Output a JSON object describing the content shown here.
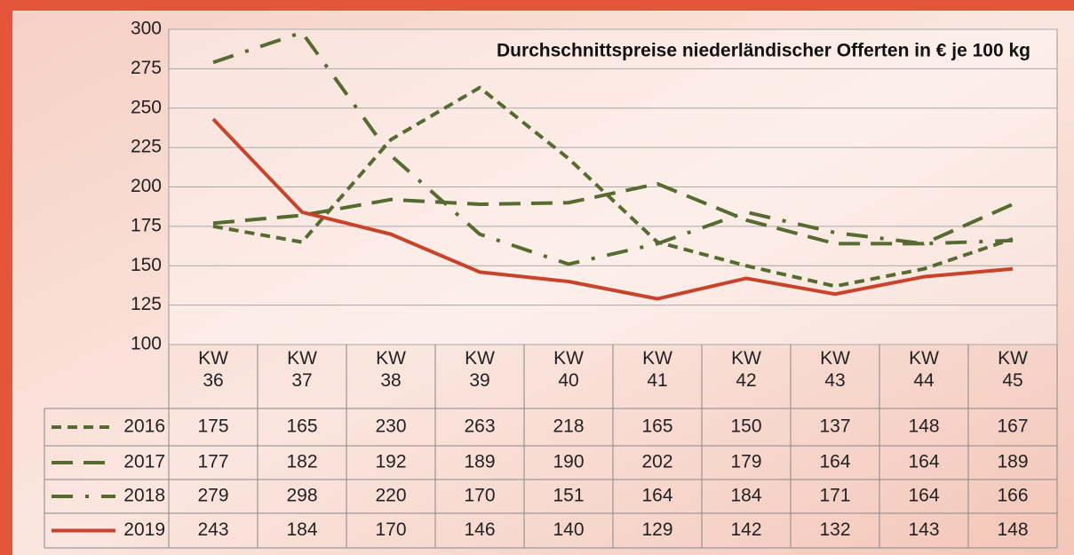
{
  "chart_data": {
    "type": "line",
    "title": "Durchschnittspreise niederländischer Offerten in € je 100 kg",
    "categories": [
      "KW 36",
      "KW 37",
      "KW 38",
      "KW 39",
      "KW 40",
      "KW 41",
      "KW 42",
      "KW 43",
      "KW 44",
      "KW 45"
    ],
    "series": [
      {
        "name": "2016",
        "color": "#556b2f",
        "values": [
          175,
          165,
          230,
          263,
          218,
          165,
          150,
          137,
          148,
          167
        ]
      },
      {
        "name": "2017",
        "color": "#556b2f",
        "values": [
          177,
          182,
          192,
          189,
          190,
          202,
          179,
          164,
          164,
          189
        ]
      },
      {
        "name": "2018",
        "color": "#556b2f",
        "values": [
          279,
          298,
          220,
          170,
          151,
          164,
          184,
          171,
          164,
          166
        ]
      },
      {
        "name": "2019",
        "color": "#c8432a",
        "values": [
          243,
          184,
          170,
          146,
          140,
          129,
          142,
          132,
          143,
          148
        ]
      }
    ],
    "ylim": [
      100,
      300
    ],
    "yticks": [
      100,
      125,
      150,
      175,
      200,
      225,
      250,
      275,
      300
    ],
    "grid": true
  }
}
